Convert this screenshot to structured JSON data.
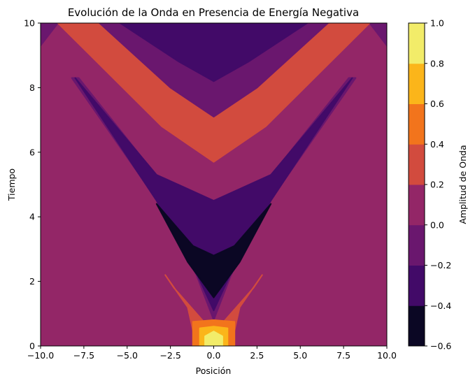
{
  "chart_data": {
    "type": "heatmap",
    "subtype": "filled-contour",
    "title": "Evolución de la Onda en Presencia de Energía Negativa",
    "xlabel": "Posición",
    "ylabel": "Tiempo",
    "colorbar_label": "Amplitud de Onda",
    "xlim": [
      -10,
      10
    ],
    "ylim": [
      0,
      10
    ],
    "x_ticks": [
      -10,
      -7.5,
      -5,
      -2.5,
      0,
      2.5,
      5,
      7.5,
      10
    ],
    "x_tick_labels": [
      "−10.0",
      "−7.5",
      "−5.0",
      "−2.5",
      "0.0",
      "2.5",
      "5.0",
      "7.5",
      "10.0"
    ],
    "y_ticks": [
      0,
      2,
      4,
      6,
      8,
      10
    ],
    "y_tick_labels": [
      "0",
      "2",
      "4",
      "6",
      "8",
      "10"
    ],
    "levels": [
      -0.6,
      -0.4,
      -0.2,
      0.0,
      0.2,
      0.4,
      0.6,
      0.8,
      1.0
    ],
    "level_tick_labels": [
      "−0.6",
      "−0.4",
      "−0.2",
      "0.0",
      "0.2",
      "0.4",
      "0.6",
      "0.8",
      "1.0"
    ],
    "level_colors": [
      "#0b0724",
      "#420a68",
      "#6a176e",
      "#932667",
      "#d24b3e",
      "#f2741c",
      "#fbb51a",
      "#f2ec69"
    ],
    "background_value": 0.1,
    "regions": [
      {
        "name": "outer-purple-band",
        "level_index": 2,
        "polygon": [
          [
            -10,
            9.3
          ],
          [
            -9,
            10
          ],
          [
            9,
            10
          ],
          [
            10,
            9.3
          ],
          [
            10,
            10
          ],
          [
            -10,
            10
          ]
        ]
      },
      {
        "name": "upper-orange-v",
        "level_index": 4,
        "polygon": [
          [
            -9,
            10
          ],
          [
            -3,
            6.8
          ],
          [
            0,
            5.7
          ],
          [
            3,
            6.8
          ],
          [
            9,
            10
          ]
        ]
      },
      {
        "name": "top-purple-band",
        "level_index": 2,
        "polygon": [
          [
            -6.6,
            10
          ],
          [
            -2.5,
            8
          ],
          [
            0,
            7.1
          ],
          [
            2.5,
            8
          ],
          [
            6.6,
            10
          ]
        ]
      },
      {
        "name": "top-dark-band",
        "level_index": 1,
        "polygon": [
          [
            -5.4,
            10
          ],
          [
            -2,
            8.8
          ],
          [
            0,
            8.2
          ],
          [
            2,
            8.8
          ],
          [
            5.4,
            10
          ]
        ]
      },
      {
        "name": "lower-v-purple",
        "level_index": 2,
        "polygon": [
          [
            -8.2,
            8.3
          ],
          [
            -3,
            4.3
          ],
          [
            -1,
            2.2
          ],
          [
            0,
            0.8
          ],
          [
            1,
            2.2
          ],
          [
            3,
            4.3
          ],
          [
            8.2,
            8.3
          ],
          [
            7.8,
            8.3
          ],
          [
            3.2,
            5.2
          ],
          [
            0,
            4.2
          ],
          [
            -3.2,
            5.2
          ],
          [
            -7.8,
            8.3
          ]
        ]
      },
      {
        "name": "lower-v-dark",
        "level_index": 1,
        "polygon": [
          [
            -8,
            8.3
          ],
          [
            -3.3,
            4.5
          ],
          [
            -1.2,
            2.5
          ],
          [
            0,
            1.1
          ],
          [
            1.2,
            2.5
          ],
          [
            3.3,
            4.5
          ],
          [
            8,
            8.3
          ],
          [
            3.3,
            5.3
          ],
          [
            0,
            4.5
          ],
          [
            -3.3,
            5.3
          ]
        ]
      },
      {
        "name": "central-black",
        "level_index": 0,
        "polygon": [
          [
            -3.3,
            4.4
          ],
          [
            -1.5,
            2.6
          ],
          [
            0,
            1.5
          ],
          [
            1.5,
            2.6
          ],
          [
            3.3,
            4.4
          ],
          [
            1.2,
            3.1
          ],
          [
            0,
            2.8
          ],
          [
            -1.2,
            3.1
          ]
        ]
      },
      {
        "name": "lower-orange-wings",
        "level_index": 4,
        "polygon": [
          [
            -2.8,
            2.2
          ],
          [
            -1.5,
            1.2
          ],
          [
            -1,
            0
          ],
          [
            1,
            0
          ],
          [
            1.5,
            1.2
          ],
          [
            2.8,
            2.2
          ],
          [
            2.3,
            1.8
          ],
          [
            0,
            0.4
          ],
          [
            -2.3,
            1.8
          ]
        ]
      },
      {
        "name": "bright-orange",
        "level_index": 5,
        "polygon": [
          [
            -1.2,
            0
          ],
          [
            -1.2,
            0.75
          ],
          [
            0,
            0.8
          ],
          [
            1.2,
            0.75
          ],
          [
            1.2,
            0
          ],
          [
            0.8,
            0
          ],
          [
            0.8,
            0.55
          ],
          [
            0,
            0.6
          ],
          [
            -0.8,
            0.55
          ],
          [
            -0.8,
            0
          ]
        ]
      },
      {
        "name": "amber-core",
        "level_index": 6,
        "polygon": [
          [
            -0.8,
            0
          ],
          [
            -0.8,
            0.55
          ],
          [
            0,
            0.6
          ],
          [
            0.8,
            0.55
          ],
          [
            0.8,
            0
          ]
        ]
      },
      {
        "name": "yellow-core",
        "level_index": 7,
        "polygon": [
          [
            -0.5,
            0
          ],
          [
            -0.5,
            0.3
          ],
          [
            0,
            0.45
          ],
          [
            0.5,
            0.3
          ],
          [
            0.5,
            0
          ]
        ]
      }
    ]
  }
}
